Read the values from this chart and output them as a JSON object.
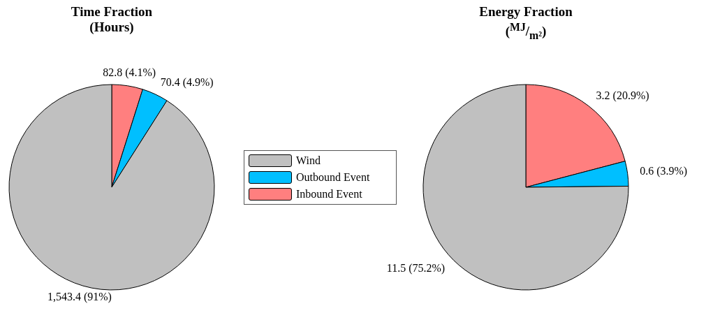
{
  "chart_data": [
    {
      "type": "pie",
      "title": "Time Fraction\n(Hours)",
      "categories": [
        "Wind",
        "Outbound Event",
        "Inbound Event"
      ],
      "values": [
        1543.4,
        70.4,
        82.8
      ],
      "colors": [
        "#c0c0c0",
        "#00bfff",
        "#ff7f7f"
      ],
      "value_labels": [
        "1,543.4 (91%)",
        "70.4 (4.9%)",
        "82.8 (4.1%)"
      ],
      "legend": "right"
    },
    {
      "type": "pie",
      "title": "Energy Fraction\n($^{MJ}$/$_{m²}$)",
      "categories": [
        null,
        null,
        null
      ],
      "values": [
        11.5,
        0.6,
        3.2
      ],
      "colors": [
        "#c0c0c0",
        "#00bfff",
        "#ff7f7f"
      ],
      "value_labels": [
        "11.5 (75.2%)",
        "0.6 (3.9%)",
        "3.2 (20.9%)"
      ]
    }
  ]
}
